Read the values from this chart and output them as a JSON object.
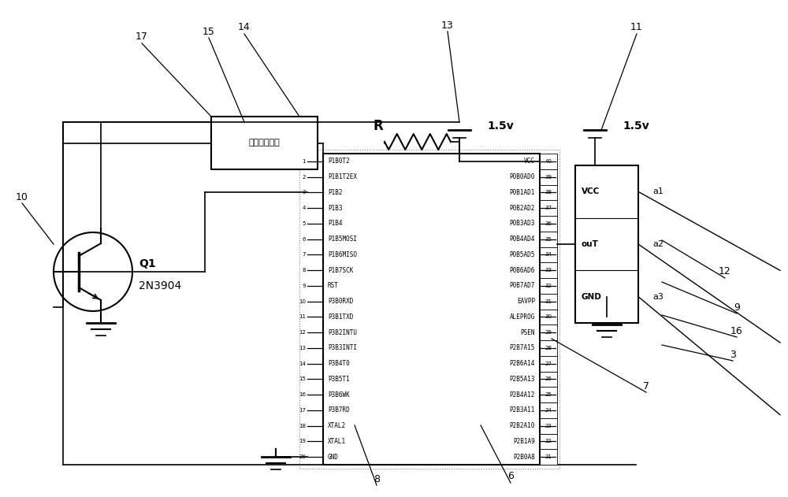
{
  "bg_color": "#ffffff",
  "left_pins": [
    "P1B0T2",
    "P1B1T2EX",
    "P1B2",
    "P1B3",
    "P1B4",
    "P1B5MOSI",
    "P1B6MISO",
    "P1B7SCK",
    "RST",
    "P3B0RXD",
    "P3B1TXD",
    "P3B2INTU",
    "P3B3INTI",
    "P3B4T0",
    "P3B5T1",
    "P3B6WK",
    "P3B7RD",
    "XTAL2",
    "XTAL1",
    "GND"
  ],
  "right_pins": [
    "VCC",
    "P0B0AD0",
    "P0B1AD1",
    "P0B2AD2",
    "P0B3AD3",
    "P0B4AD4",
    "P0B5AD5",
    "P0B6AD6",
    "P0B7AD7",
    "EAVPP",
    "ALEPROG",
    "PSEN",
    "P2B7A15",
    "P2B6A14",
    "P2B5A13",
    "P2B4A12",
    "P2B3A11",
    "P2B2A10",
    "P2B1A9",
    "P2B0A8"
  ],
  "left_pin_nums": [
    "1",
    "2",
    "3",
    "4",
    "5",
    "6",
    "7",
    "8",
    "9",
    "10",
    "11",
    "12",
    "13",
    "14",
    "15",
    "16",
    "17",
    "18",
    "19",
    "20"
  ],
  "right_pin_nums": [
    "40",
    "39",
    "38",
    "37",
    "36",
    "35",
    "34",
    "33",
    "32",
    "31",
    "30",
    "29",
    "28",
    "27",
    "26",
    "25",
    "24",
    "23",
    "22",
    "21"
  ],
  "sensor_labels": [
    "VCC",
    "ouT",
    "GND"
  ],
  "sensor_pins": [
    "a1",
    "a2",
    "a3"
  ],
  "mouse_label": "鼠标原有电路",
  "q1_label": "Q1",
  "q1_model": "2N3904",
  "vcc_1p5": "1.5v",
  "r_label": "R"
}
